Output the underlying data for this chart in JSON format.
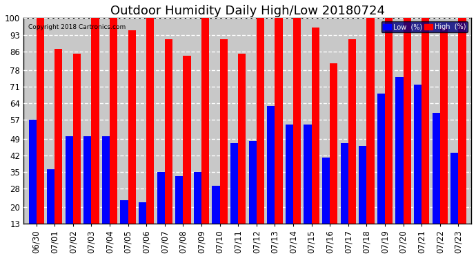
{
  "title": "Outdoor Humidity Daily High/Low 20180724",
  "copyright": "Copyright 2018 Cartronics.com",
  "categories": [
    "06/30",
    "07/01",
    "07/02",
    "07/03",
    "07/04",
    "07/05",
    "07/06",
    "07/07",
    "07/08",
    "07/09",
    "07/10",
    "07/11",
    "07/12",
    "07/13",
    "07/14",
    "07/15",
    "07/16",
    "07/17",
    "07/18",
    "07/19",
    "07/20",
    "07/21",
    "07/22",
    "07/23"
  ],
  "high": [
    100,
    87,
    85,
    100,
    100,
    95,
    100,
    91,
    84,
    100,
    91,
    85,
    100,
    100,
    100,
    96,
    81,
    91,
    100,
    100,
    100,
    100,
    96,
    100
  ],
  "low": [
    57,
    36,
    50,
    50,
    50,
    23,
    22,
    35,
    33,
    35,
    29,
    47,
    48,
    63,
    55,
    55,
    41,
    47,
    46,
    68,
    75,
    72,
    60,
    43
  ],
  "high_color": "#ff0000",
  "low_color": "#0000ff",
  "bg_color": "#ffffff",
  "plot_bg_color": "#c8c8c8",
  "grid_color": "#ffffff",
  "yticks": [
    13,
    20,
    28,
    35,
    42,
    49,
    57,
    64,
    71,
    78,
    86,
    93,
    100
  ],
  "ymin": 13,
  "ymax": 100,
  "bar_width": 0.42,
  "title_fontsize": 13,
  "tick_fontsize": 8.5,
  "legend_low_label": "Low  (%)",
  "legend_high_label": "High  (%)"
}
